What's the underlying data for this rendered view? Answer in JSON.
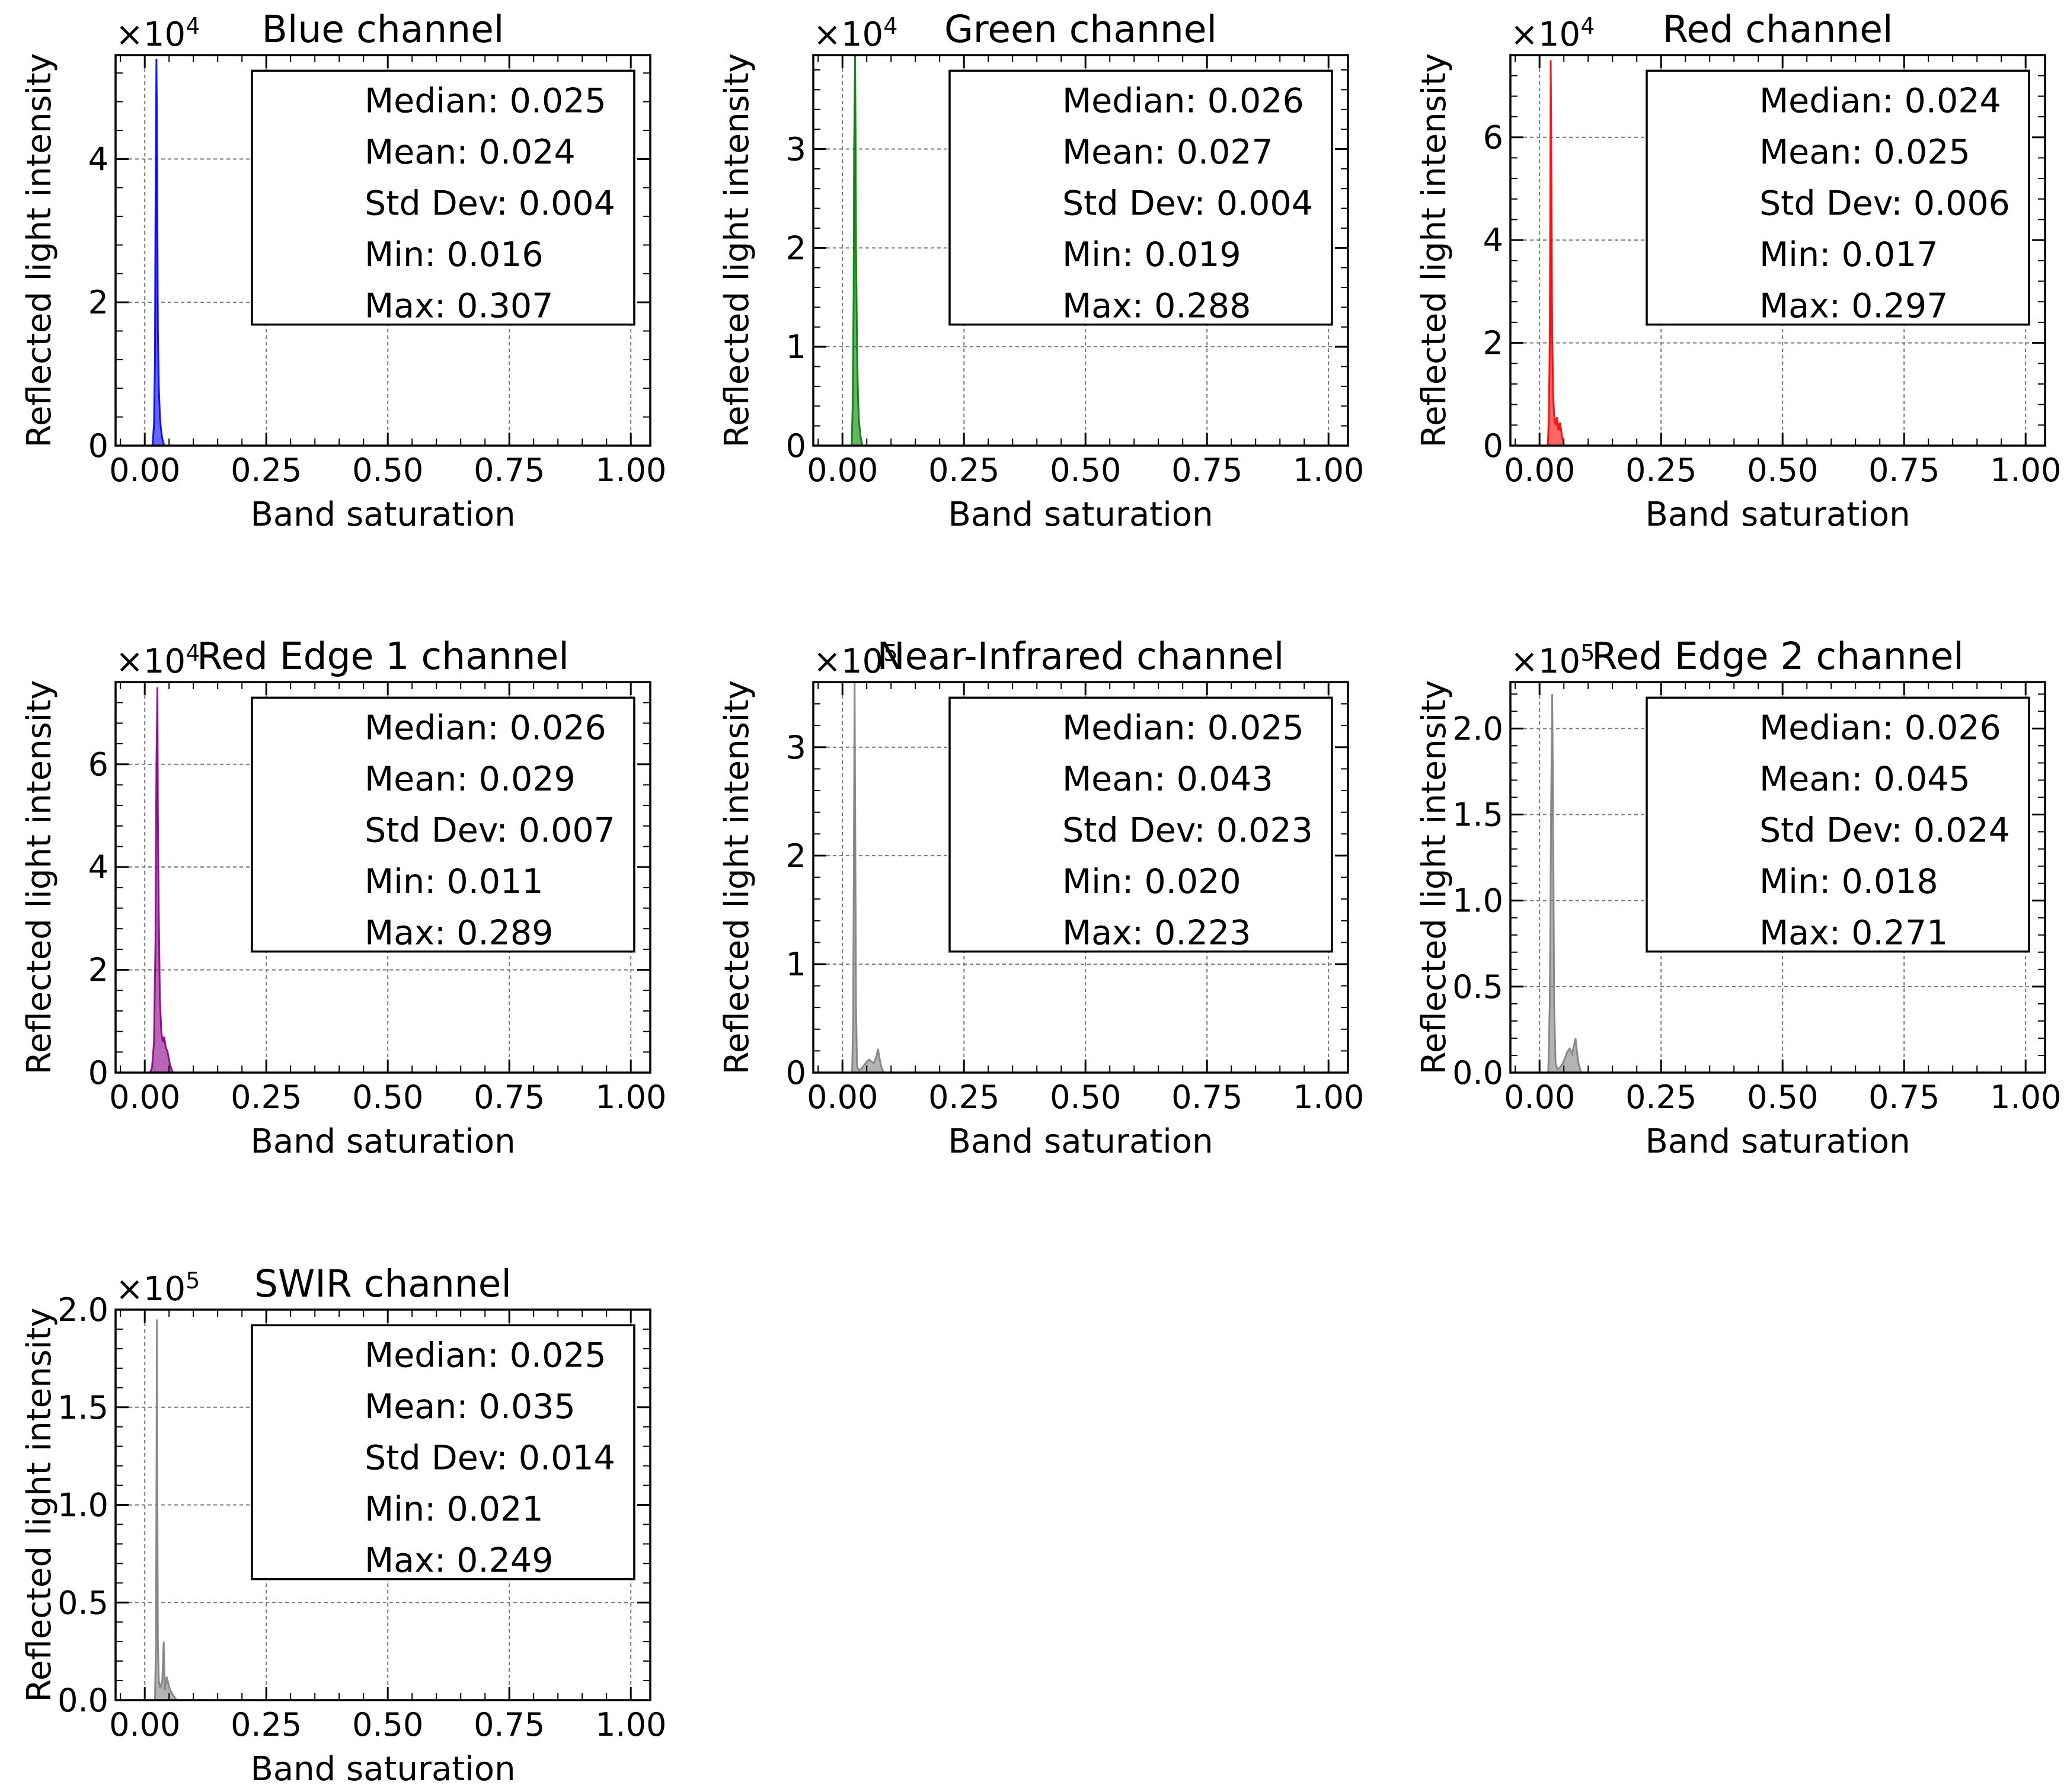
{
  "chart_data": [
    {
      "type": "area",
      "title": "Blue channel",
      "xlabel": "Band saturation",
      "ylabel": "Reflected light intensity",
      "xlim": [
        -0.06,
        1.04
      ],
      "ylim": [
        0,
        5.45
      ],
      "x_ticks": [
        "0.00",
        "0.25",
        "0.50",
        "0.75",
        "1.00"
      ],
      "y_ticks": [
        0,
        2,
        4
      ],
      "y_tick_labels": [
        "0",
        "2",
        "4"
      ],
      "y_scale_base": "×10",
      "y_scale_exp": "4",
      "grid": true,
      "color": "#0000ff",
      "series": [
        {
          "x": [
            0.016,
            0.019,
            0.021,
            0.022,
            0.024,
            0.025,
            0.026,
            0.027,
            0.029,
            0.031,
            0.033,
            0.036,
            0.04
          ],
          "values": [
            0,
            0.3,
            1.2,
            3.0,
            5.4,
            4.6,
            3.0,
            1.6,
            0.8,
            0.45,
            0.25,
            0.1,
            0
          ]
        }
      ],
      "stats": [
        "Median: 0.025",
        "Mean: 0.024",
        "Std Dev: 0.004",
        "Min: 0.016",
        "Max: 0.307"
      ]
    },
    {
      "type": "area",
      "title": "Green channel",
      "xlabel": "Band saturation",
      "ylabel": "Reflected light intensity",
      "xlim": [
        -0.06,
        1.04
      ],
      "ylim": [
        0,
        3.95
      ],
      "x_ticks": [
        "0.00",
        "0.25",
        "0.50",
        "0.75",
        "1.00"
      ],
      "y_ticks": [
        0,
        1,
        2,
        3
      ],
      "y_tick_labels": [
        "0",
        "1",
        "2",
        "3"
      ],
      "y_scale_base": "×10",
      "y_scale_exp": "4",
      "grid": true,
      "color": "#008000",
      "series": [
        {
          "x": [
            0.019,
            0.021,
            0.023,
            0.024,
            0.026,
            0.027,
            0.028,
            0.03,
            0.032,
            0.034,
            0.037,
            0.041
          ],
          "values": [
            0,
            0.4,
            1.5,
            3.0,
            3.95,
            3.2,
            2.0,
            1.0,
            0.5,
            0.25,
            0.1,
            0
          ]
        }
      ],
      "stats": [
        "Median: 0.026",
        "Mean: 0.027",
        "Std Dev: 0.004",
        "Min: 0.019",
        "Max: 0.288"
      ]
    },
    {
      "type": "area",
      "title": "Red channel",
      "xlabel": "Band saturation",
      "ylabel": "Reflected light intensity",
      "xlim": [
        -0.06,
        1.04
      ],
      "ylim": [
        0,
        7.6
      ],
      "x_ticks": [
        "0.00",
        "0.25",
        "0.50",
        "0.75",
        "1.00"
      ],
      "y_ticks": [
        0,
        2,
        4,
        6
      ],
      "y_tick_labels": [
        "0",
        "2",
        "4",
        "6"
      ],
      "y_scale_base": "×10",
      "y_scale_exp": "4",
      "grid": true,
      "color": "#ff0000",
      "series": [
        {
          "x": [
            0.017,
            0.019,
            0.021,
            0.022,
            0.023,
            0.024,
            0.025,
            0.026,
            0.028,
            0.03,
            0.033,
            0.036,
            0.039,
            0.042,
            0.046,
            0.05
          ],
          "values": [
            0,
            0.5,
            2.0,
            4.5,
            7.5,
            6.0,
            4.0,
            2.2,
            1.0,
            0.6,
            0.4,
            0.55,
            0.3,
            0.45,
            0.2,
            0
          ]
        }
      ],
      "stats": [
        "Median: 0.024",
        "Mean: 0.025",
        "Std Dev: 0.006",
        "Min: 0.017",
        "Max: 0.297"
      ]
    },
    {
      "type": "area",
      "title": "Red Edge 1 channel",
      "xlabel": "Band saturation",
      "ylabel": "Reflected light intensity",
      "xlim": [
        -0.06,
        1.04
      ],
      "ylim": [
        0,
        7.6
      ],
      "x_ticks": [
        "0.00",
        "0.25",
        "0.50",
        "0.75",
        "1.00"
      ],
      "y_ticks": [
        0,
        2,
        4,
        6
      ],
      "y_tick_labels": [
        "0",
        "2",
        "4",
        "6"
      ],
      "y_scale_base": "×10",
      "y_scale_exp": "4",
      "grid": true,
      "color": "#8b008b",
      "series": [
        {
          "x": [
            0.011,
            0.015,
            0.019,
            0.022,
            0.024,
            0.026,
            0.027,
            0.029,
            0.031,
            0.034,
            0.037,
            0.04,
            0.043,
            0.047,
            0.052,
            0.058
          ],
          "values": [
            0,
            0.1,
            0.6,
            2.5,
            6.0,
            7.5,
            5.0,
            3.0,
            1.5,
            0.8,
            0.6,
            0.7,
            0.5,
            0.4,
            0.15,
            0
          ]
        }
      ],
      "stats": [
        "Median: 0.026",
        "Mean: 0.029",
        "Std Dev: 0.007",
        "Min: 0.011",
        "Max: 0.289"
      ]
    },
    {
      "type": "area",
      "title": "Near-Infrared channel",
      "xlabel": "Band saturation",
      "ylabel": "Reflected light intensity",
      "xlim": [
        -0.06,
        1.04
      ],
      "ylim": [
        0,
        3.6
      ],
      "x_ticks": [
        "0.00",
        "0.25",
        "0.50",
        "0.75",
        "1.00"
      ],
      "y_ticks": [
        0,
        1,
        2,
        3
      ],
      "y_tick_labels": [
        "0",
        "1",
        "2",
        "3"
      ],
      "y_scale_base": "×10",
      "y_scale_exp": "5",
      "grid": true,
      "color": "#808080",
      "series": [
        {
          "x": [
            0.02,
            0.022,
            0.024,
            0.025,
            0.026,
            0.028,
            0.03,
            0.035,
            0.04,
            0.045,
            0.05,
            0.055,
            0.06,
            0.065,
            0.07,
            0.073,
            0.076,
            0.08,
            0.085
          ],
          "values": [
            0,
            0.5,
            2.5,
            3.6,
            2.6,
            0.6,
            0.05,
            0.02,
            0.04,
            0.07,
            0.1,
            0.12,
            0.1,
            0.09,
            0.15,
            0.22,
            0.14,
            0.05,
            0
          ]
        }
      ],
      "stats": [
        "Median: 0.025",
        "Mean: 0.043",
        "Std Dev: 0.023",
        "Min: 0.020",
        "Max: 0.223"
      ]
    },
    {
      "type": "area",
      "title": "Red Edge 2 channel",
      "xlabel": "Band saturation",
      "ylabel": "Reflected light intensity",
      "xlim": [
        -0.06,
        1.04
      ],
      "ylim": [
        0,
        2.27
      ],
      "x_ticks": [
        "0.00",
        "0.25",
        "0.50",
        "0.75",
        "1.00"
      ],
      "y_ticks": [
        0,
        0.5,
        1.0,
        1.5,
        2.0
      ],
      "y_tick_labels": [
        "0.0",
        "0.5",
        "1.0",
        "1.5",
        "2.0"
      ],
      "y_scale_base": "×10",
      "y_scale_exp": "5",
      "grid": true,
      "color": "#808080",
      "series": [
        {
          "x": [
            0.018,
            0.021,
            0.024,
            0.026,
            0.028,
            0.03,
            0.033,
            0.037,
            0.042,
            0.047,
            0.052,
            0.057,
            0.062,
            0.067,
            0.071,
            0.074,
            0.077,
            0.081,
            0.086
          ],
          "values": [
            0,
            0.4,
            1.6,
            2.2,
            1.5,
            0.4,
            0.05,
            0.02,
            0.03,
            0.05,
            0.08,
            0.12,
            0.14,
            0.11,
            0.16,
            0.2,
            0.12,
            0.04,
            0
          ]
        }
      ],
      "stats": [
        "Median: 0.026",
        "Mean: 0.045",
        "Std Dev: 0.024",
        "Min: 0.018",
        "Max: 0.271"
      ]
    },
    {
      "type": "area",
      "title": "SWIR channel",
      "xlabel": "Band saturation",
      "ylabel": "Reflected light intensity",
      "xlim": [
        -0.06,
        1.04
      ],
      "ylim": [
        0,
        2.0
      ],
      "x_ticks": [
        "0.00",
        "0.25",
        "0.50",
        "0.75",
        "1.00"
      ],
      "y_ticks": [
        0,
        0.5,
        1.0,
        1.5,
        2.0
      ],
      "y_tick_labels": [
        "0.0",
        "0.5",
        "1.0",
        "1.5",
        "2.0"
      ],
      "y_scale_base": "×10",
      "y_scale_exp": "5",
      "grid": true,
      "color": "#808080",
      "series": [
        {
          "x": [
            0.021,
            0.023,
            0.024,
            0.025,
            0.026,
            0.027,
            0.029,
            0.032,
            0.036,
            0.039,
            0.041,
            0.043,
            0.045,
            0.048,
            0.051,
            0.055,
            0.06,
            0.066
          ],
          "values": [
            0,
            0.3,
            1.0,
            1.95,
            1.0,
            0.3,
            0.1,
            0.06,
            0.1,
            0.3,
            0.05,
            0.08,
            0.12,
            0.09,
            0.06,
            0.04,
            0.02,
            0
          ]
        }
      ],
      "stats": [
        "Median: 0.025",
        "Mean: 0.035",
        "Std Dev: 0.014",
        "Min: 0.021",
        "Max: 0.249"
      ]
    }
  ]
}
